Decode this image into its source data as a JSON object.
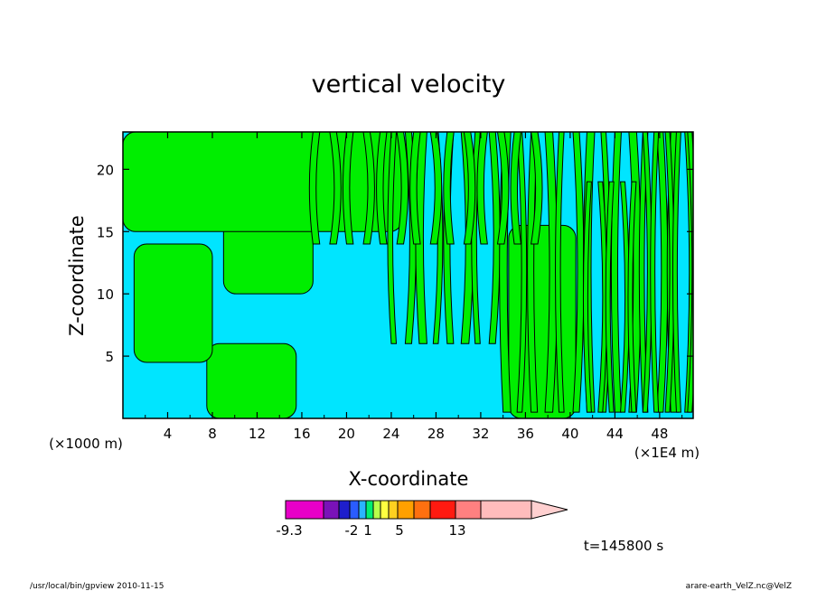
{
  "chart_data": {
    "type": "heatmap",
    "title": "vertical velocity",
    "xlabel": "X-coordinate",
    "ylabel": "Z-coordinate",
    "x_units_label": "(×1000 m)",
    "x_scale_label": "(×1E4 m)",
    "xlim": [
      0,
      51
    ],
    "ylim": [
      0,
      23
    ],
    "x_ticks": [
      "4",
      "8",
      "12",
      "16",
      "20",
      "24",
      "28",
      "32",
      "36",
      "40",
      "44",
      "48"
    ],
    "y_ticks": [
      "5",
      "10",
      "15",
      "20"
    ],
    "colorbar": {
      "labels": [
        "-9.3",
        "-2",
        "1",
        "5",
        "13"
      ],
      "colors": [
        "#e800c8",
        "#7a12b8",
        "#1e1ecc",
        "#2a5cff",
        "#2ab4ff",
        "#00ee70",
        "#b8ff4a",
        "#ffff40",
        "#ffd020",
        "#ffa000",
        "#ff7010",
        "#ff1a10",
        "#ff8080",
        "#ffbcbc",
        "#ffd0d0"
      ]
    },
    "fill_colors": {
      "positive": "#00ee00",
      "negative": "#00e5ff"
    },
    "regions": [
      {
        "name": "green-column-center",
        "value": "positive",
        "x": [
          34.5,
          40.5
        ],
        "z": [
          0,
          15.5
        ]
      },
      {
        "name": "green-block-left-low",
        "value": "positive",
        "x": [
          7.5,
          15.5
        ],
        "z": [
          0,
          6
        ]
      },
      {
        "name": "green-plume-left",
        "value": "positive",
        "x": [
          1,
          8
        ],
        "z": [
          4.5,
          14
        ]
      },
      {
        "name": "green-plume-mid",
        "value": "positive",
        "x": [
          9,
          17
        ],
        "z": [
          10,
          17
        ]
      },
      {
        "name": "green-band-upper",
        "value": "positive",
        "x": [
          0,
          25
        ],
        "z": [
          15,
          23
        ]
      }
    ],
    "time_label": "t=145800 s"
  },
  "footer": {
    "left": "/usr/local/bin/gpview  2010-11-15",
    "right": "arare-earth_VelZ.nc@VelZ"
  }
}
